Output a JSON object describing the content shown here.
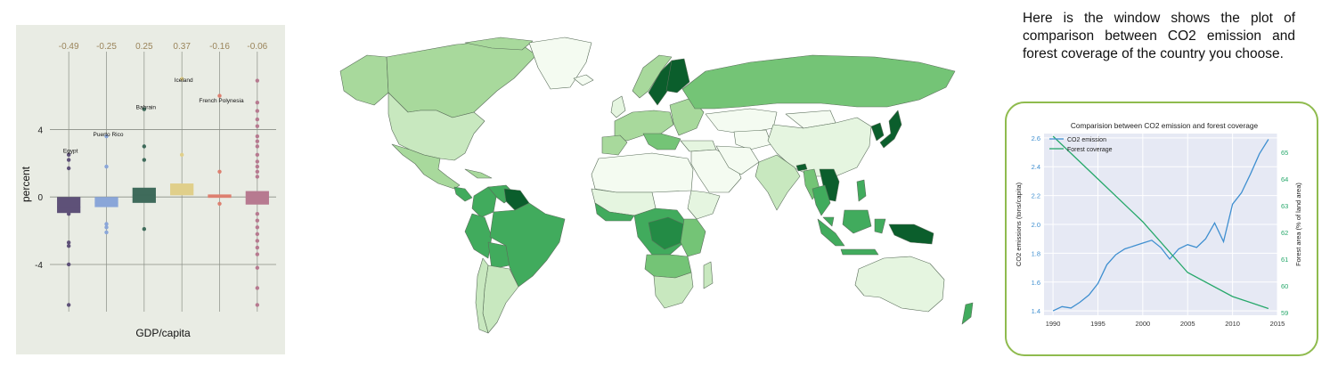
{
  "description": "Here is the window shows the plot of comparison between CO2 emission and forest coverage of the country you choose.",
  "colors": {
    "panel_bg": "#e9ece4",
    "map_low": "#f4fbf1",
    "map_high": "#0b5e2c",
    "co2_line": "#3f8fd0",
    "forest_line": "#27a86b",
    "frame_border": "#8fbb4e",
    "plot_bg": "#e6e9f4"
  },
  "chart_data": [
    {
      "type": "box",
      "xlabel": "GDP/capita",
      "ylabel": "percent",
      "ylim": [
        -6.8,
        8.3
      ],
      "yticks": [
        -4,
        0,
        4
      ],
      "grid": "horizontal",
      "groups": [
        {
          "coef_label": "-0.49",
          "color": "#5e5178",
          "q1": -0.95,
          "q3": 0.0,
          "median": -0.6,
          "points": [
            2.5,
            2.2,
            1.7,
            -1.0,
            -2.7,
            -2.9,
            -4.0,
            -6.4
          ],
          "annotations": [
            {
              "text": "Egypt",
              "y": 2.4
            }
          ]
        },
        {
          "coef_label": "-0.25",
          "color": "#8aa6d8",
          "q1": -0.6,
          "q3": 0.0,
          "median": -0.35,
          "points": [
            3.6,
            1.8,
            -1.6,
            -1.8,
            -2.1
          ],
          "annotations": [
            {
              "text": "Puerto Rico",
              "y": 3.4
            }
          ]
        },
        {
          "coef_label": "0.25",
          "color": "#3f6b5b",
          "q1": -0.35,
          "q3": 0.55,
          "median": 0.1,
          "points": [
            5.2,
            3.0,
            2.2,
            -1.9
          ],
          "annotations": [
            {
              "text": "Bahrain",
              "y": 5.0
            }
          ]
        },
        {
          "coef_label": "0.37",
          "color": "#e0cf8a",
          "q1": 0.1,
          "q3": 0.8,
          "median": 0.4,
          "points": [
            7.0,
            2.5,
            0.5
          ],
          "annotations": [
            {
              "text": "Iceland",
              "y": 6.6
            }
          ]
        },
        {
          "coef_label": "-0.16",
          "color": "#dd8070",
          "q1": -0.05,
          "q3": 0.15,
          "median": 0.05,
          "points": [
            6.0,
            1.5,
            -0.4
          ],
          "annotations": [
            {
              "text": "French Polynesia",
              "y": 5.4
            }
          ]
        },
        {
          "coef_label": "-0.06",
          "color": "#b77a90",
          "q1": -0.45,
          "q3": 0.35,
          "median": -0.05,
          "points": [
            6.9,
            5.6,
            5.1,
            4.6,
            4.2,
            3.6,
            3.3,
            3.0,
            2.5,
            2.1,
            1.8,
            1.5,
            1.2,
            -1.0,
            -1.4,
            -1.8,
            -2.2,
            -2.6,
            -3.0,
            -3.4,
            -4.2,
            -5.4,
            -6.4
          ]
        }
      ]
    },
    {
      "type": "line",
      "title": "Comparision between CO2 emission and forest coverage",
      "xlabel": "",
      "ylabel": "CO2 emissions (tons/capita)",
      "ylabel_right": "Forest area (% of land area)",
      "xlim": [
        1989,
        2015
      ],
      "ylim": [
        1.37,
        2.63
      ],
      "ylim_right": [
        58.9,
        65.7
      ],
      "xticks": [
        1990,
        1995,
        2000,
        2005,
        2010,
        2015
      ],
      "yticks": [
        1.4,
        1.6,
        1.8,
        2.0,
        2.2,
        2.4,
        2.6
      ],
      "yticks_right": [
        59,
        60,
        61,
        62,
        63,
        64,
        65
      ],
      "legend": "top-left",
      "series": [
        {
          "name": "CO2 emission",
          "axis": "left",
          "color": "#3f8fd0",
          "x": [
            1990,
            1991,
            1992,
            1993,
            1994,
            1995,
            1996,
            1997,
            1998,
            1999,
            2000,
            2001,
            2002,
            2003,
            2004,
            2005,
            2006,
            2007,
            2008,
            2009,
            2010,
            2011,
            2012,
            2013,
            2014
          ],
          "y": [
            1.4,
            1.43,
            1.42,
            1.46,
            1.51,
            1.59,
            1.72,
            1.79,
            1.83,
            1.85,
            1.87,
            1.89,
            1.84,
            1.76,
            1.83,
            1.86,
            1.84,
            1.9,
            2.01,
            1.88,
            2.14,
            2.22,
            2.35,
            2.49,
            2.59
          ]
        },
        {
          "name": "Forest coverage",
          "axis": "right",
          "color": "#27a86b",
          "x": [
            1990,
            1995,
            2000,
            2005,
            2010,
            2014
          ],
          "y": [
            65.6,
            64.0,
            62.4,
            60.5,
            59.6,
            59.15
          ]
        }
      ]
    }
  ]
}
